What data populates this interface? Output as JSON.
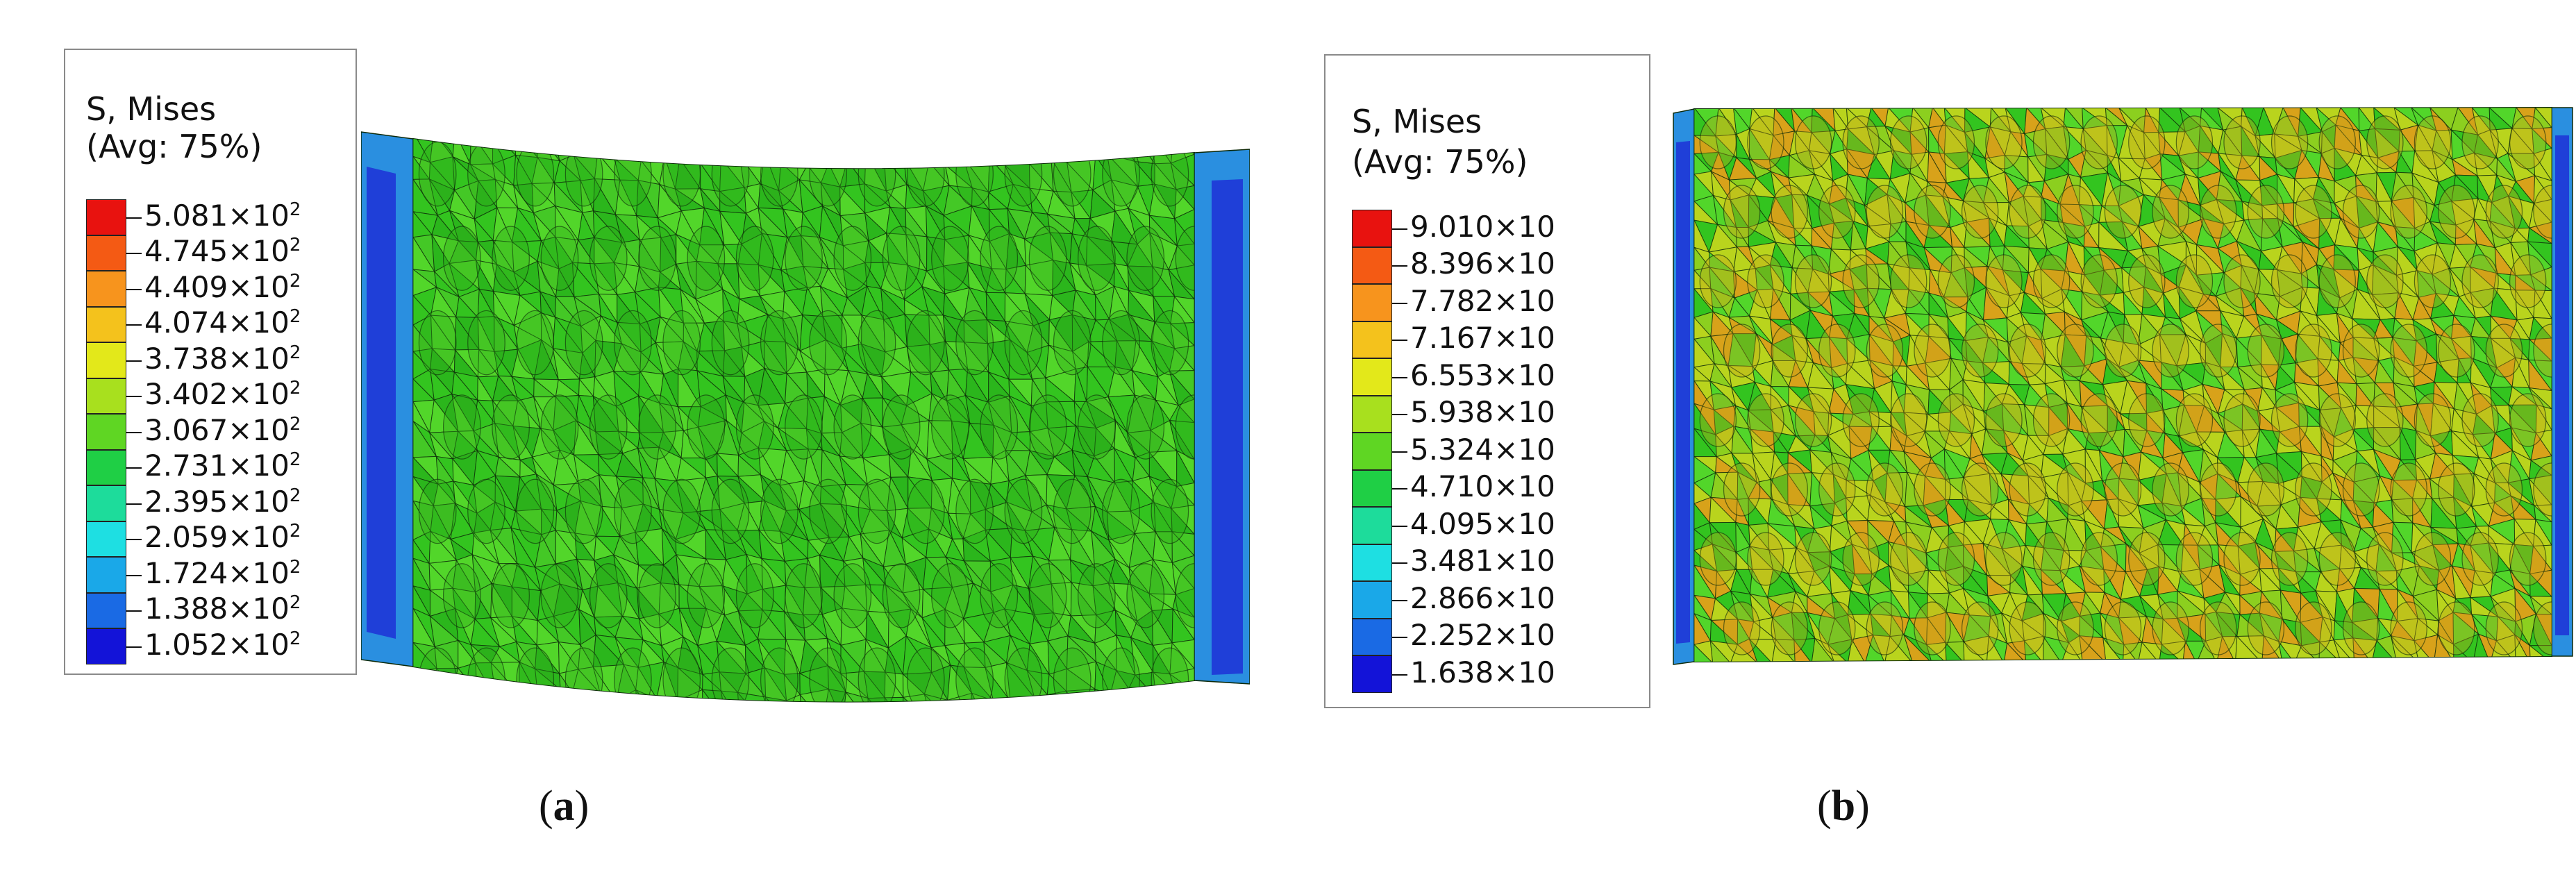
{
  "panels": [
    {
      "id": "a",
      "legend": {
        "title_line1": "S, Mises",
        "title_line2": "(Avg: 75%)",
        "entries": [
          {
            "mantissa": "5.081",
            "base": "×10",
            "exp": "2",
            "color": "#e8120f"
          },
          {
            "mantissa": "4.745",
            "base": "×10",
            "exp": "2",
            "color": "#f45a14"
          },
          {
            "mantissa": "4.409",
            "base": "×10",
            "exp": "2",
            "color": "#f7941d"
          },
          {
            "mantissa": "4.074",
            "base": "×10",
            "exp": "2",
            "color": "#f4c21c"
          },
          {
            "mantissa": "3.738",
            "base": "×10",
            "exp": "2",
            "color": "#e3e81a"
          },
          {
            "mantissa": "3.402",
            "base": "×10",
            "exp": "2",
            "color": "#a8e01e"
          },
          {
            "mantissa": "3.067",
            "base": "×10",
            "exp": "2",
            "color": "#5fd623"
          },
          {
            "mantissa": "2.731",
            "base": "×10",
            "exp": "2",
            "color": "#1fcf45"
          },
          {
            "mantissa": "2.395",
            "base": "×10",
            "exp": "2",
            "color": "#1ddc9b"
          },
          {
            "mantissa": "2.059",
            "base": "×10",
            "exp": "2",
            "color": "#1edfe2"
          },
          {
            "mantissa": "1.724",
            "base": "×10",
            "exp": "2",
            "color": "#1aa8e8"
          },
          {
            "mantissa": "1.388",
            "base": "×10",
            "exp": "2",
            "color": "#1a6ae4"
          },
          {
            "mantissa": "1.052",
            "base": "×10",
            "exp": "2",
            "color": "#1313d8"
          }
        ]
      },
      "caption": "a"
    },
    {
      "id": "b",
      "legend": {
        "title_line1": "S, Mises",
        "title_line2": "(Avg: 75%)",
        "entries": [
          {
            "mantissa": "9.010",
            "base": "×10",
            "exp": "",
            "color": "#e8120f"
          },
          {
            "mantissa": "8.396",
            "base": "×10",
            "exp": "",
            "color": "#f45a14"
          },
          {
            "mantissa": "7.782",
            "base": "×10",
            "exp": "",
            "color": "#f7941d"
          },
          {
            "mantissa": "7.167",
            "base": "×10",
            "exp": "",
            "color": "#f4c21c"
          },
          {
            "mantissa": "6.553",
            "base": "×10",
            "exp": "",
            "color": "#e3e81a"
          },
          {
            "mantissa": "5.938",
            "base": "×10",
            "exp": "",
            "color": "#a8e01e"
          },
          {
            "mantissa": "5.324",
            "base": "×10",
            "exp": "",
            "color": "#5fd623"
          },
          {
            "mantissa": "4.710",
            "base": "×10",
            "exp": "",
            "color": "#1fcf45"
          },
          {
            "mantissa": "4.095",
            "base": "×10",
            "exp": "",
            "color": "#1ddc9b"
          },
          {
            "mantissa": "3.481",
            "base": "×10",
            "exp": "",
            "color": "#1edfe2"
          },
          {
            "mantissa": "2.866",
            "base": "×10",
            "exp": "",
            "color": "#1aa8e8"
          },
          {
            "mantissa": "2.252",
            "base": "×10",
            "exp": "",
            "color": "#1a6ae4"
          },
          {
            "mantissa": "1.638",
            "base": "×10",
            "exp": "",
            "color": "#1313d8"
          }
        ]
      },
      "caption": "b"
    }
  ],
  "colors": {
    "mesh_green": "#33c41f",
    "mesh_green_light": "#52d62a",
    "mesh_yellow": "#b9d41d",
    "mesh_orange": "#d8a21a",
    "edge_blue": "#1f3fd8",
    "edge_lightblue": "#2a8fe0",
    "mesh_line": "#0d2a0a"
  }
}
